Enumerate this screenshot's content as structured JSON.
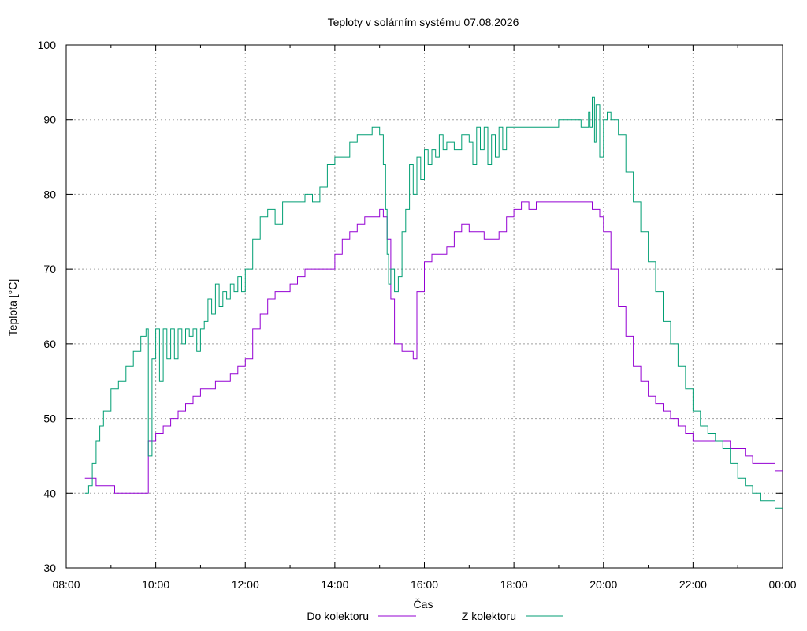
{
  "chart_data": {
    "type": "line",
    "title": "Teploty v solárním systému 07.08.2026",
    "xlabel": "Čas",
    "ylabel": "Teplota [°C]",
    "xlim": [
      "08:00",
      "00:00"
    ],
    "ylim": [
      30,
      100
    ],
    "x_ticks": [
      "08:00",
      "10:00",
      "12:00",
      "14:00",
      "16:00",
      "18:00",
      "20:00",
      "22:00",
      "00:00"
    ],
    "y_ticks": [
      30,
      40,
      50,
      60,
      70,
      80,
      90,
      100
    ],
    "grid": true,
    "legend_position": "bottom",
    "colors": {
      "Do kolektoru": "#9400d3",
      "Z kolektoru": "#009e73"
    },
    "series": [
      {
        "name": "Do kolektoru",
        "x": [
          "08:25",
          "08:35",
          "08:40",
          "08:50",
          "09:00",
          "09:05",
          "09:10",
          "09:20",
          "09:40",
          "09:48",
          "09:50",
          "10:00",
          "10:10",
          "10:20",
          "10:30",
          "10:40",
          "10:50",
          "11:00",
          "11:10",
          "11:20",
          "11:30",
          "11:40",
          "11:50",
          "12:00",
          "12:10",
          "12:20",
          "12:30",
          "12:40",
          "12:50",
          "13:00",
          "13:10",
          "13:20",
          "13:30",
          "13:40",
          "13:50",
          "14:00",
          "14:10",
          "14:20",
          "14:30",
          "14:40",
          "14:50",
          "15:00",
          "15:05",
          "15:10",
          "15:15",
          "15:20",
          "15:30",
          "15:40",
          "15:45",
          "15:50",
          "16:00",
          "16:10",
          "16:20",
          "16:30",
          "16:40",
          "16:50",
          "17:00",
          "17:10",
          "17:20",
          "17:30",
          "17:40",
          "17:50",
          "18:00",
          "18:10",
          "18:20",
          "18:30",
          "19:00",
          "19:30",
          "19:40",
          "19:45",
          "19:50",
          "19:55",
          "20:00",
          "20:10",
          "20:20",
          "20:30",
          "20:40",
          "20:50",
          "21:00",
          "21:10",
          "21:20",
          "21:30",
          "21:40",
          "21:50",
          "22:00",
          "22:10",
          "22:20",
          "22:30",
          "22:40",
          "22:50",
          "23:00",
          "23:10",
          "23:20",
          "23:30",
          "23:40",
          "23:50",
          "00:00"
        ],
        "y": [
          42,
          42,
          41,
          41,
          41,
          40,
          40,
          40,
          40,
          40,
          47,
          48,
          49,
          50,
          51,
          52,
          53,
          54,
          54,
          55,
          55,
          56,
          57,
          58,
          62,
          64,
          66,
          67,
          67,
          68,
          69,
          70,
          70,
          70,
          70,
          72,
          74,
          75,
          76,
          77,
          77,
          78,
          77,
          74,
          66,
          60,
          59,
          59,
          58,
          67,
          71,
          72,
          72,
          73,
          75,
          76,
          75,
          75,
          74,
          74,
          75,
          77,
          78,
          79,
          78,
          79,
          79,
          79,
          79,
          78,
          78,
          77,
          75,
          70,
          65,
          61,
          57,
          55,
          53,
          52,
          51,
          50,
          49,
          48,
          47,
          47,
          47,
          47,
          47,
          46,
          46,
          45,
          44,
          44,
          44,
          43,
          43
        ]
      },
      {
        "name": "Z kolektoru",
        "x": [
          "08:25",
          "08:30",
          "08:35",
          "08:40",
          "08:45",
          "08:50",
          "09:00",
          "09:10",
          "09:20",
          "09:30",
          "09:40",
          "09:47",
          "09:50",
          "09:55",
          "10:00",
          "10:05",
          "10:10",
          "10:15",
          "10:20",
          "10:25",
          "10:30",
          "10:35",
          "10:40",
          "10:45",
          "10:50",
          "10:55",
          "11:00",
          "11:05",
          "11:10",
          "11:15",
          "11:20",
          "11:25",
          "11:30",
          "11:35",
          "11:40",
          "11:45",
          "11:50",
          "11:55",
          "12:00",
          "12:05",
          "12:10",
          "12:20",
          "12:30",
          "12:40",
          "12:50",
          "13:00",
          "13:10",
          "13:20",
          "13:30",
          "13:40",
          "13:50",
          "14:00",
          "14:10",
          "14:20",
          "14:30",
          "14:40",
          "14:50",
          "15:00",
          "15:05",
          "15:08",
          "15:10",
          "15:12",
          "15:15",
          "15:20",
          "15:25",
          "15:30",
          "15:35",
          "15:40",
          "15:45",
          "15:50",
          "15:55",
          "16:00",
          "16:05",
          "16:10",
          "16:15",
          "16:20",
          "16:25",
          "16:30",
          "16:40",
          "16:50",
          "17:00",
          "17:05",
          "17:10",
          "17:15",
          "17:20",
          "17:25",
          "17:30",
          "17:35",
          "17:40",
          "17:45",
          "17:50",
          "18:00",
          "18:10",
          "18:20",
          "18:30",
          "18:40",
          "19:00",
          "19:20",
          "19:30",
          "19:35",
          "19:40",
          "19:42",
          "19:45",
          "19:48",
          "19:50",
          "19:55",
          "20:00",
          "20:05",
          "20:10",
          "20:20",
          "20:30",
          "20:40",
          "20:50",
          "21:00",
          "21:10",
          "21:20",
          "21:30",
          "21:40",
          "21:50",
          "22:00",
          "22:10",
          "22:20",
          "22:30",
          "22:40",
          "22:50",
          "23:00",
          "23:10",
          "23:20",
          "23:30",
          "23:40",
          "23:50",
          "00:00"
        ],
        "y": [
          40,
          41,
          44,
          47,
          49,
          51,
          54,
          55,
          57,
          59,
          61,
          62,
          45,
          58,
          62,
          55,
          62,
          58,
          62,
          58,
          62,
          60,
          62,
          61,
          62,
          59,
          62,
          63,
          66,
          64,
          68,
          65,
          67,
          66,
          68,
          67,
          69,
          67,
          70,
          70,
          74,
          77,
          78,
          76,
          79,
          79,
          79,
          80,
          79,
          81,
          84,
          85,
          85,
          87,
          88,
          88,
          89,
          88,
          84,
          78,
          72,
          68,
          70,
          67,
          69,
          75,
          78,
          84,
          80,
          85,
          82,
          86,
          84,
          86,
          85,
          88,
          86,
          87,
          86,
          88,
          87,
          84,
          89,
          86,
          89,
          84,
          88,
          85,
          89,
          86,
          89,
          89,
          89,
          89,
          89,
          89,
          90,
          90,
          89,
          89,
          91,
          89,
          93,
          87,
          92,
          85,
          90,
          91,
          90,
          88,
          83,
          79,
          75,
          71,
          67,
          63,
          60,
          57,
          54,
          51,
          49,
          48,
          47,
          46,
          44,
          42,
          41,
          40,
          39,
          39,
          38,
          38
        ]
      }
    ]
  }
}
